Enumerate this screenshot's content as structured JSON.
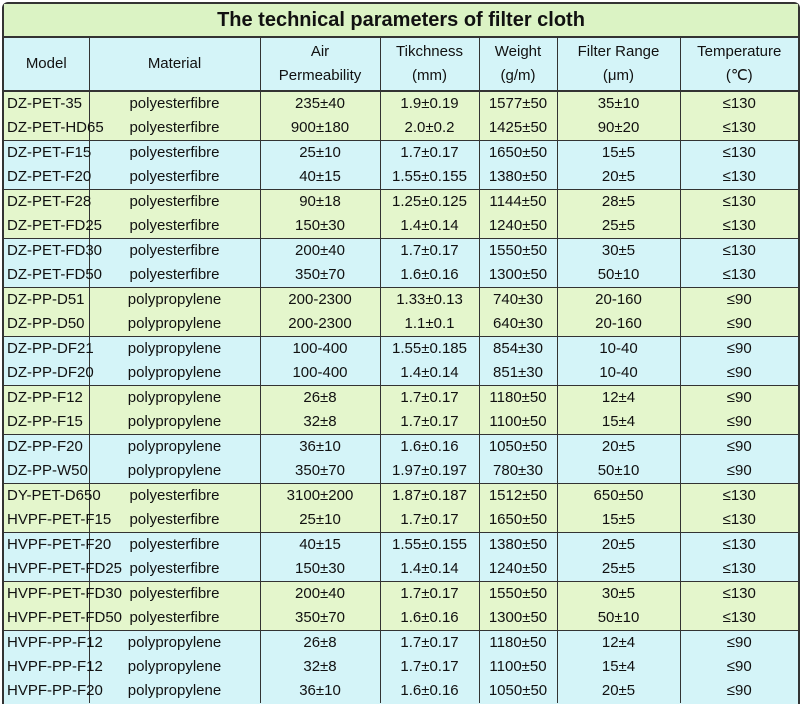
{
  "title": "The technical parameters of filter cloth",
  "headers": [
    [
      "Model"
    ],
    [
      "Material"
    ],
    [
      "Air",
      "Permeability"
    ],
    [
      "Tikchness",
      "(mm)"
    ],
    [
      "Weight",
      "(g/m)"
    ],
    [
      "Filter Range",
      "(μm)"
    ],
    [
      "Temperature",
      "(℃)"
    ]
  ],
  "colors": {
    "green_band": "#e4f6cc",
    "blue_band": "#d4f4f8",
    "title_bg": "#dbf3c4"
  },
  "groups": [
    {
      "band": "green",
      "rows": [
        [
          "DZ-PET-35",
          "polyesterfibre",
          "235±40",
          "1.9±0.19",
          "1577±50",
          "35±10",
          "≤130"
        ],
        [
          "DZ-PET-HD65",
          "polyesterfibre",
          "900±180",
          "2.0±0.2",
          "1425±50",
          "90±20",
          "≤130"
        ]
      ]
    },
    {
      "band": "blue",
      "rows": [
        [
          "DZ-PET-F15",
          "polyesterfibre",
          "25±10",
          "1.7±0.17",
          "1650±50",
          "15±5",
          "≤130"
        ],
        [
          "DZ-PET-F20",
          "polyesterfibre",
          "40±15",
          "1.55±0.155",
          "1380±50",
          "20±5",
          "≤130"
        ]
      ]
    },
    {
      "band": "green",
      "rows": [
        [
          "DZ-PET-F28",
          "polyesterfibre",
          "90±18",
          "1.25±0.125",
          "1144±50",
          "28±5",
          "≤130"
        ],
        [
          "DZ-PET-FD25",
          "polyesterfibre",
          "150±30",
          "1.4±0.14",
          "1240±50",
          "25±5",
          "≤130"
        ]
      ]
    },
    {
      "band": "blue",
      "rows": [
        [
          "DZ-PET-FD30",
          "polyesterfibre",
          "200±40",
          "1.7±0.17",
          "1550±50",
          "30±5",
          "≤130"
        ],
        [
          "DZ-PET-FD50",
          "polyesterfibre",
          "350±70",
          "1.6±0.16",
          "1300±50",
          "50±10",
          "≤130"
        ]
      ]
    },
    {
      "band": "green",
      "rows": [
        [
          "DZ-PP-D51",
          "polypropylene",
          "200-2300",
          "1.33±0.13",
          "740±30",
          "20-160",
          "≤90"
        ],
        [
          "DZ-PP-D50",
          "polypropylene",
          "200-2300",
          "1.1±0.1",
          "640±30",
          "20-160",
          "≤90"
        ]
      ]
    },
    {
      "band": "blue",
      "rows": [
        [
          "DZ-PP-DF21",
          "polypropylene",
          "100-400",
          "1.55±0.185",
          "854±30",
          "10-40",
          "≤90"
        ],
        [
          "DZ-PP-DF20",
          "polypropylene",
          "100-400",
          "1.4±0.14",
          "851±30",
          "10-40",
          "≤90"
        ]
      ]
    },
    {
      "band": "green",
      "rows": [
        [
          "DZ-PP-F12",
          "polypropylene",
          "26±8",
          "1.7±0.17",
          "1180±50",
          "12±4",
          "≤90"
        ],
        [
          "DZ-PP-F15",
          "polypropylene",
          "32±8",
          "1.7±0.17",
          "1100±50",
          "15±4",
          "≤90"
        ]
      ]
    },
    {
      "band": "blue",
      "rows": [
        [
          "DZ-PP-F20",
          "polypropylene",
          "36±10",
          "1.6±0.16",
          "1050±50",
          "20±5",
          "≤90"
        ],
        [
          "DZ-PP-W50",
          "polypropylene",
          "350±70",
          "1.97±0.197",
          "780±30",
          "50±10",
          "≤90"
        ]
      ]
    },
    {
      "band": "green",
      "rows": [
        [
          "DY-PET-D650",
          "polyesterfibre",
          "3100±200",
          "1.87±0.187",
          "1512±50",
          "650±50",
          "≤130"
        ],
        [
          "HVPF-PET-F15",
          "polyesterfibre",
          "25±10",
          "1.7±0.17",
          "1650±50",
          "15±5",
          "≤130"
        ]
      ]
    },
    {
      "band": "blue",
      "rows": [
        [
          "HVPF-PET-F20",
          "polyesterfibre",
          "40±15",
          "1.55±0.155",
          "1380±50",
          "20±5",
          "≤130"
        ],
        [
          "HVPF-PET-FD25",
          "polyesterfibre",
          "150±30",
          "1.4±0.14",
          "1240±50",
          "25±5",
          "≤130"
        ]
      ]
    },
    {
      "band": "green",
      "rows": [
        [
          "HVPF-PET-FD30",
          "polyesterfibre",
          "200±40",
          "1.7±0.17",
          "1550±50",
          "30±5",
          "≤130"
        ],
        [
          "HVPF-PET-FD50",
          "polyesterfibre",
          "350±70",
          "1.6±0.16",
          "1300±50",
          "50±10",
          "≤130"
        ]
      ]
    },
    {
      "band": "blue",
      "rows": [
        [
          "HVPF-PP-F12",
          "polypropylene",
          "26±8",
          "1.7±0.17",
          "1180±50",
          "12±4",
          "≤90"
        ],
        [
          "HVPF-PP-F12",
          "polypropylene",
          "32±8",
          "1.7±0.17",
          "1100±50",
          "15±4",
          "≤90"
        ],
        [
          "HVPF-PP-F20",
          "polypropylene",
          "36±10",
          "1.6±0.16",
          "1050±50",
          "20±5",
          "≤90"
        ]
      ]
    }
  ]
}
